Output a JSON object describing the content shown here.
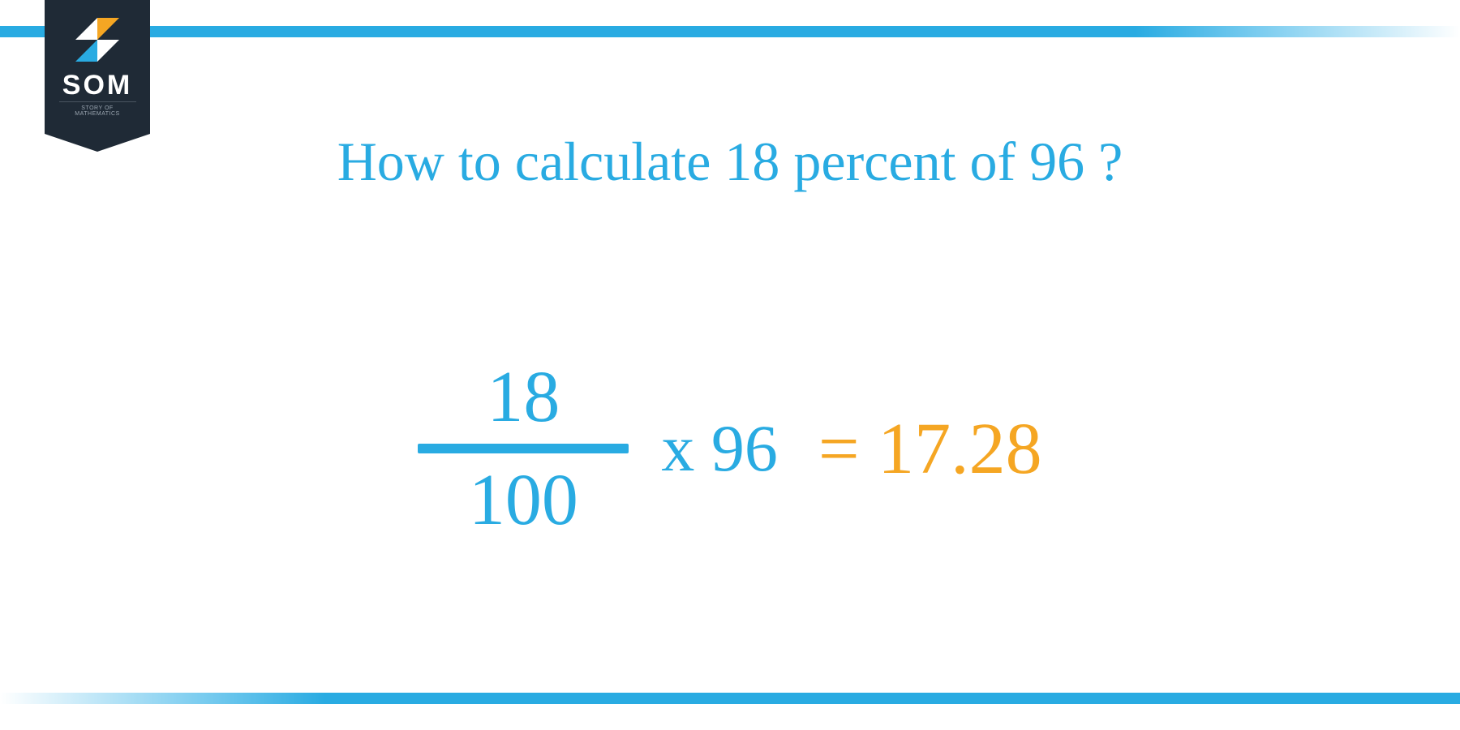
{
  "logo": {
    "text": "SOM",
    "subtext": "STORY OF MATHEMATICS",
    "badge_bg": "#1f2a36",
    "icon_colors": {
      "tl": "#ffffff",
      "tr": "#f5a623",
      "bl": "#29abe2",
      "br": "#ffffff"
    }
  },
  "colors": {
    "primary_blue": "#29abe2",
    "accent_orange": "#f5a623",
    "background": "#ffffff",
    "badge_dark": "#1f2a36"
  },
  "title": {
    "text": "How to calculate 18 percent of 96 ?",
    "color": "#29abe2",
    "fontsize": 68
  },
  "equation": {
    "fraction": {
      "numerator": "18",
      "denominator": "100",
      "color": "#29abe2",
      "bar_color": "#29abe2",
      "fontsize": 90
    },
    "multiply": {
      "text": "x 96",
      "color": "#29abe2",
      "fontsize": 82
    },
    "result": {
      "text": "= 17.28",
      "color": "#f5a623",
      "fontsize": 90
    }
  },
  "bars": {
    "height": 14,
    "color": "#29abe2"
  }
}
